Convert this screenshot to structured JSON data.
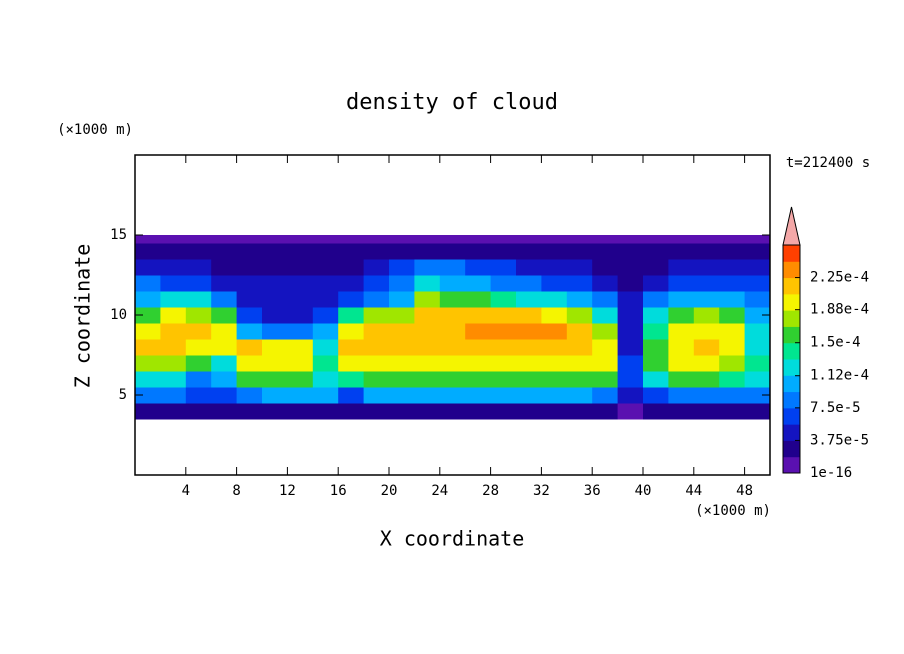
{
  "chart_data": {
    "type": "contour",
    "title": "density of cloud",
    "x_label": "X coordinate",
    "y_label": "Z coordinate",
    "x_unit": "(×1000 m)",
    "y_unit": "(×1000 m)",
    "annotation": "t=212400 s",
    "xlim": [
      0,
      50
    ],
    "ylim": [
      0,
      20
    ],
    "xticks": [
      4,
      8,
      12,
      16,
      20,
      24,
      28,
      32,
      36,
      40,
      44,
      48
    ],
    "yticks": [
      5,
      10,
      15
    ],
    "xbins": [
      0,
      2,
      4,
      6,
      8,
      10,
      12,
      14,
      16,
      18,
      20,
      22,
      24,
      26,
      28,
      30,
      32,
      34,
      36,
      38,
      40,
      42,
      44,
      46,
      48,
      50
    ],
    "ybins": [
      3.5,
      4.5,
      5.5,
      6.5,
      7.5,
      8.5,
      9.5,
      10.5,
      11.5,
      12.5,
      13.5,
      14.5,
      15
    ],
    "z": [
      [
        3e-05,
        3e-05,
        2e-05,
        3e-05,
        2e-05,
        2e-05,
        3e-05,
        2e-05,
        3e-05,
        2e-05,
        3e-05,
        3e-05,
        3e-05,
        3e-05,
        3e-05,
        3e-05,
        3e-05,
        3e-05,
        2e-05,
        1e-05,
        2e-05,
        3e-05,
        3e-05,
        3e-05,
        3e-05
      ],
      [
        9e-05,
        8e-05,
        7e-05,
        6e-05,
        9e-05,
        0.0001,
        0.0001,
        0.0001,
        7e-05,
        0.0001,
        0.0001,
        0.0001,
        0.0001,
        0.0001,
        0.0001,
        0.0001,
        0.0001,
        0.0001,
        9e-05,
        5e-05,
        6e-05,
        8e-05,
        9e-05,
        8e-05,
        8e-05
      ],
      [
        0.00013,
        0.00012,
        9e-05,
        0.0001,
        0.00016,
        0.00016,
        0.00016,
        0.00012,
        0.00014,
        0.00016,
        0.00016,
        0.00016,
        0.00016,
        0.00016,
        0.00016,
        0.00016,
        0.00016,
        0.00016,
        0.00015,
        6e-05,
        0.00012,
        0.00015,
        0.00015,
        0.00014,
        0.00012
      ],
      [
        0.00018,
        0.00017,
        0.00016,
        0.00013,
        0.00019,
        0.00019,
        0.00019,
        0.00014,
        0.00019,
        0.00019,
        0.00019,
        0.00019,
        0.0002,
        0.0002,
        0.0002,
        0.0002,
        0.0002,
        0.0002,
        0.00019,
        6e-05,
        0.00016,
        0.00019,
        0.00019,
        0.00018,
        0.00014
      ],
      [
        0.00021,
        0.00022,
        0.0002,
        0.00019,
        0.00021,
        0.0002,
        0.00019,
        0.00013,
        0.00021,
        0.00021,
        0.00021,
        0.00021,
        0.00021,
        0.00022,
        0.00022,
        0.00022,
        0.00022,
        0.00021,
        0.0002,
        5e-05,
        0.00016,
        0.0002,
        0.00021,
        0.0002,
        0.00013
      ],
      [
        0.0002,
        0.00022,
        0.00022,
        0.0002,
        0.0001,
        8e-05,
        9e-05,
        0.0001,
        0.0002,
        0.00021,
        0.00021,
        0.00022,
        0.00022,
        0.00023,
        0.00023,
        0.00023,
        0.00023,
        0.00021,
        0.00018,
        5e-05,
        0.00014,
        0.00019,
        0.0002,
        0.00019,
        0.00012
      ],
      [
        0.00016,
        0.00019,
        0.00018,
        0.00015,
        6e-05,
        5e-05,
        5e-05,
        6e-05,
        0.00014,
        0.00017,
        0.00018,
        0.00021,
        0.00022,
        0.00022,
        0.00022,
        0.00021,
        0.0002,
        0.00017,
        0.00013,
        5e-05,
        0.00012,
        0.00015,
        0.00017,
        0.00015,
        0.0001
      ],
      [
        0.00011,
        0.00013,
        0.00012,
        9e-05,
        5e-05,
        4e-05,
        4e-05,
        5e-05,
        7e-05,
        9e-05,
        0.00011,
        0.00017,
        0.00015,
        0.00015,
        0.00014,
        0.00013,
        0.00012,
        0.0001,
        8e-05,
        4e-05,
        8e-05,
        0.0001,
        0.00011,
        0.0001,
        9e-05
      ],
      [
        8e-05,
        7e-05,
        6e-05,
        5e-05,
        4e-05,
        4e-05,
        4e-05,
        4e-05,
        5e-05,
        6e-05,
        8e-05,
        0.00012,
        0.00011,
        0.0001,
        9e-05,
        8e-05,
        7e-05,
        6e-05,
        5e-05,
        3e-05,
        5e-05,
        6e-05,
        6e-05,
        6e-05,
        6e-05
      ],
      [
        5e-05,
        4e-05,
        4e-05,
        3e-05,
        3e-05,
        3e-05,
        3e-05,
        3e-05,
        3e-05,
        4e-05,
        6e-05,
        8e-05,
        8e-05,
        7e-05,
        6e-05,
        5e-05,
        5e-05,
        4e-05,
        3e-05,
        3e-05,
        3e-05,
        4e-05,
        4e-05,
        4e-05,
        5e-05
      ],
      [
        3e-05,
        2e-05,
        2e-05,
        2e-05,
        2e-05,
        2e-05,
        2e-05,
        2e-05,
        2e-05,
        2e-05,
        3e-05,
        3e-05,
        3e-05,
        3e-05,
        3e-05,
        3e-05,
        2e-05,
        2e-05,
        2e-05,
        2e-05,
        2e-05,
        2e-05,
        2e-05,
        2e-05,
        3e-05
      ],
      [
        1e-05,
        1e-05,
        1e-05,
        1e-05,
        1e-05,
        1e-05,
        1e-05,
        1e-05,
        1e-05,
        1e-05,
        1e-05,
        1e-05,
        1e-05,
        1e-05,
        1e-05,
        1e-05,
        1e-05,
        1e-05,
        1e-05,
        1e-05,
        1e-05,
        1e-05,
        1e-05,
        1e-05,
        1e-05
      ]
    ],
    "levels": [
      1e-16,
      1.875e-05,
      3.75e-05,
      5.625e-05,
      7.5e-05,
      9.375e-05,
      0.0001125,
      0.00013125,
      0.00015,
      0.00016875,
      0.0001875,
      0.00020625,
      0.000225,
      0.00024375,
      0.0002625
    ],
    "colors": [
      "#5a10b0",
      "#20008c",
      "#1414c0",
      "#0040f0",
      "#0078ff",
      "#00acff",
      "#00dcdc",
      "#00e690",
      "#30d030",
      "#a0e600",
      "#f5f500",
      "#ffc400",
      "#ff8c00",
      "#ff4000"
    ],
    "extend_color": "#f4a8a8",
    "cblim": [
      1e-16,
      0.0002625
    ],
    "cbticks": [
      {
        "value": 1e-16,
        "label": "1e-16"
      },
      {
        "value": 3.75e-05,
        "label": "3.75e-5"
      },
      {
        "value": 7.5e-05,
        "label": "7.5e-5"
      },
      {
        "value": 0.000112,
        "label": "1.12e-4"
      },
      {
        "value": 0.00015,
        "label": "1.5e-4"
      },
      {
        "value": 0.000188,
        "label": "1.88e-4"
      },
      {
        "value": 0.000225,
        "label": "2.25e-4"
      }
    ]
  }
}
